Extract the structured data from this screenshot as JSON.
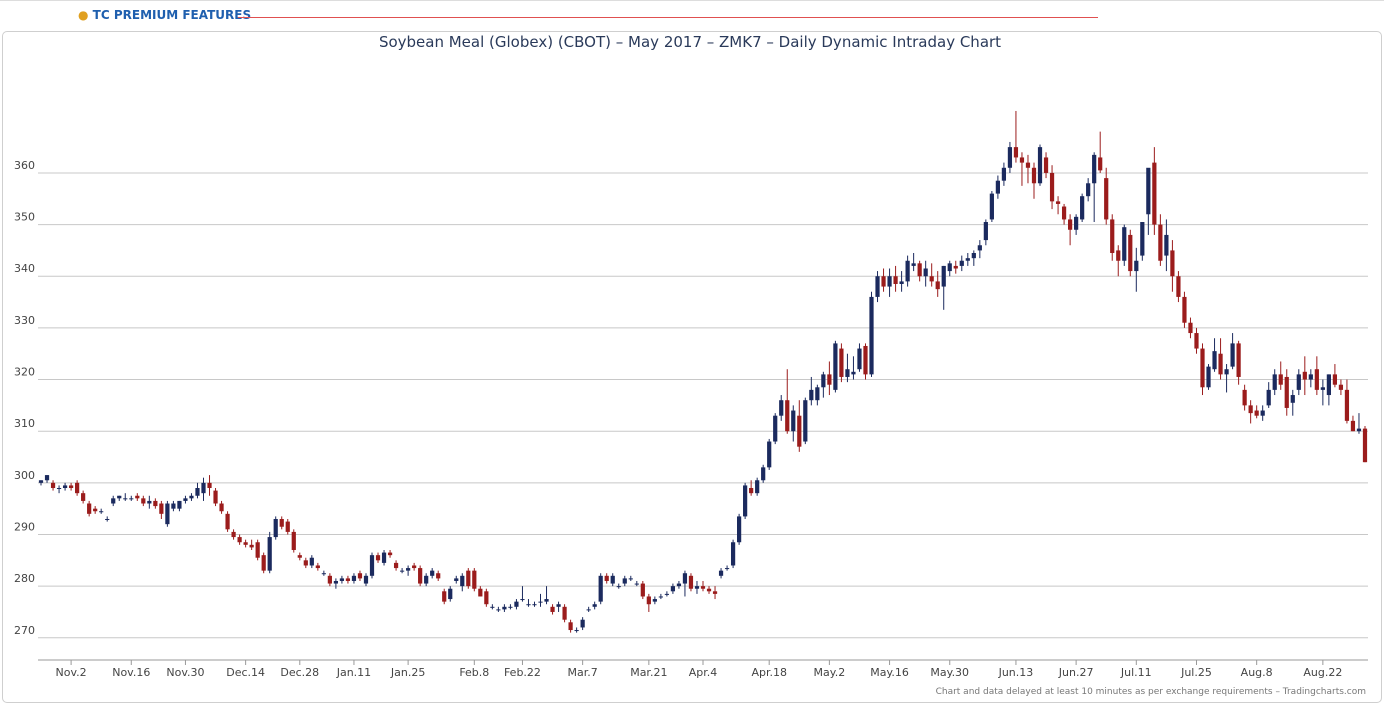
{
  "header": {
    "title": "TC PREMIUM FEATURES"
  },
  "footer": "Chart and data delayed at least 10 minutes as per exchange requirements – Tradingcharts.com",
  "chart_data": {
    "type": "candlestick",
    "title": "Soybean Meal (Globex) (CBOT) – May 2017 – ZMK7 – Daily Dynamic Intraday Chart",
    "xlim": [
      -0.5,
      220.5
    ],
    "xticks": [
      {
        "value": 5,
        "label": "Nov.2"
      },
      {
        "value": 15,
        "label": "Nov.16"
      },
      {
        "value": 24,
        "label": "Nov.30"
      },
      {
        "value": 34,
        "label": "Dec.14"
      },
      {
        "value": 43,
        "label": "Dec.28"
      },
      {
        "value": 52,
        "label": "Jan.11"
      },
      {
        "value": 61,
        "label": "Jan.25"
      },
      {
        "value": 72,
        "label": "Feb.8"
      },
      {
        "value": 80,
        "label": "Feb.22"
      },
      {
        "value": 90,
        "label": "Mar.7"
      },
      {
        "value": 101,
        "label": "Mar.21"
      },
      {
        "value": 110,
        "label": "Apr.4"
      },
      {
        "value": 121,
        "label": "Apr.18"
      },
      {
        "value": 131,
        "label": "May.2"
      },
      {
        "value": 141,
        "label": "May.16"
      },
      {
        "value": 151,
        "label": "May.30"
      },
      {
        "value": 162,
        "label": "Jun.13"
      },
      {
        "value": 172,
        "label": "Jun.27"
      },
      {
        "value": 182,
        "label": "Jul.11"
      },
      {
        "value": 192,
        "label": "Jul.25"
      },
      {
        "value": 202,
        "label": "Aug.8"
      },
      {
        "value": 213,
        "label": "Aug.22"
      }
    ],
    "ylim": [
      265.7,
      380.9
    ],
    "yticks": [
      270,
      280,
      290,
      300,
      310,
      320,
      330,
      340,
      350,
      360
    ],
    "grid": true,
    "up_color": "#1b2a5e",
    "down_color": "#9b1c1c",
    "candles": [
      [
        300,
        300.5,
        299.5,
        300.5
      ],
      [
        300.5,
        301.5,
        300,
        301.5
      ],
      [
        300,
        300.5,
        298.5,
        299
      ],
      [
        299,
        299.5,
        298,
        299
      ],
      [
        299,
        300,
        298.5,
        299.5
      ],
      [
        299.5,
        300,
        298.5,
        299
      ],
      [
        300,
        300.5,
        297.5,
        298
      ],
      [
        298,
        298.5,
        296,
        296.5
      ],
      [
        296,
        296.5,
        293.5,
        294
      ],
      [
        295,
        295.5,
        294,
        294.5
      ],
      [
        294.5,
        295,
        294,
        294.5
      ],
      [
        293,
        293.5,
        292.5,
        293
      ],
      [
        296,
        297.5,
        295.5,
        297
      ],
      [
        297,
        297.5,
        296.5,
        297.5
      ],
      [
        297,
        298,
        296.5,
        297
      ],
      [
        297,
        297.5,
        296.5,
        297
      ],
      [
        297.5,
        298,
        296.5,
        297
      ],
      [
        297,
        297.5,
        295.5,
        296
      ],
      [
        296,
        297.5,
        295,
        296.5
      ],
      [
        296.5,
        297,
        295,
        295.5
      ],
      [
        296,
        296.5,
        293,
        294
      ],
      [
        292,
        296.5,
        291.5,
        296
      ],
      [
        295,
        296.5,
        294.5,
        296
      ],
      [
        295,
        296.5,
        294.5,
        296.5
      ],
      [
        296.5,
        297.5,
        296,
        297
      ],
      [
        297,
        298,
        296.5,
        297.5
      ],
      [
        297.5,
        300,
        297,
        299
      ],
      [
        298,
        301,
        296.5,
        300
      ],
      [
        300,
        301.5,
        297.5,
        299
      ],
      [
        298.5,
        299,
        295.5,
        296
      ],
      [
        296,
        296.5,
        294,
        294.5
      ],
      [
        294,
        294.5,
        290.5,
        291
      ],
      [
        290.5,
        291,
        289,
        289.5
      ],
      [
        289.5,
        290,
        288,
        288.5
      ],
      [
        288.5,
        289,
        287.5,
        288
      ],
      [
        288,
        289,
        287,
        287.5
      ],
      [
        288.5,
        289,
        285,
        285.5
      ],
      [
        286,
        286.5,
        282.5,
        283
      ],
      [
        283,
        290.5,
        282.5,
        289.5
      ],
      [
        289.5,
        293.5,
        289,
        293
      ],
      [
        293,
        293.5,
        291,
        291.5
      ],
      [
        292.5,
        293,
        290,
        290.5
      ],
      [
        290.5,
        291,
        286.5,
        287
      ],
      [
        286,
        286.5,
        285,
        285.5
      ],
      [
        285,
        285.5,
        283.5,
        284
      ],
      [
        284,
        286,
        283.5,
        285.5
      ],
      [
        284,
        284.5,
        283,
        283.5
      ],
      [
        282.5,
        283,
        282,
        282.5
      ],
      [
        282,
        282.5,
        280,
        280.5
      ],
      [
        280.5,
        281.5,
        279.5,
        281
      ],
      [
        281,
        282,
        280.5,
        281.5
      ],
      [
        281.5,
        282,
        280.5,
        281
      ],
      [
        281,
        282.5,
        280.5,
        282
      ],
      [
        282.5,
        283,
        281,
        281.5
      ],
      [
        280.5,
        282.5,
        280,
        282
      ],
      [
        282,
        286.5,
        281.5,
        286
      ],
      [
        286,
        286.5,
        284.5,
        285
      ],
      [
        284.5,
        287,
        284,
        286.5
      ],
      [
        286.5,
        287,
        285.5,
        286
      ],
      [
        284.5,
        285,
        283,
        283.5
      ],
      [
        283,
        283.5,
        282.5,
        283
      ],
      [
        283,
        284,
        282,
        283.5
      ],
      [
        284,
        284.5,
        283,
        283.5
      ],
      [
        283.5,
        284,
        280,
        280.5
      ],
      [
        280.5,
        282.5,
        280,
        282
      ],
      [
        282,
        283.5,
        281.5,
        283
      ],
      [
        282.5,
        283,
        281,
        281.5
      ],
      [
        279,
        279.5,
        276.5,
        277
      ],
      [
        277.5,
        280,
        277,
        279.5
      ],
      [
        281,
        282,
        280.5,
        281.5
      ],
      [
        280,
        282.5,
        279,
        282
      ],
      [
        283,
        283.5,
        279.5,
        280
      ],
      [
        283,
        283.5,
        279,
        279.5
      ],
      [
        279.5,
        280,
        278,
        278
      ],
      [
        279,
        279.5,
        276,
        276.5
      ],
      [
        276,
        276.5,
        275.5,
        276
      ],
      [
        275.5,
        276,
        275,
        275.5
      ],
      [
        275.5,
        276.5,
        275,
        276
      ],
      [
        276,
        276.5,
        275.5,
        276
      ],
      [
        276,
        277.5,
        275.5,
        277
      ],
      [
        277.5,
        280,
        277,
        277.5
      ],
      [
        276.5,
        277.5,
        276,
        276.5
      ],
      [
        276.5,
        277,
        276,
        276.5
      ],
      [
        277,
        278.5,
        276,
        277
      ],
      [
        277,
        280,
        276.5,
        277.5
      ],
      [
        276,
        276.5,
        274.5,
        275
      ],
      [
        276,
        277,
        275,
        276.5
      ],
      [
        276,
        276.5,
        273,
        273.5
      ],
      [
        273,
        273.5,
        271,
        271.5
      ],
      [
        271.5,
        272,
        271,
        271.5
      ],
      [
        272,
        274,
        271.5,
        273.5
      ],
      [
        275.5,
        276,
        275,
        275.5
      ],
      [
        276,
        277,
        275.5,
        276.5
      ],
      [
        277,
        282.5,
        276.5,
        282
      ],
      [
        282,
        282.5,
        280.5,
        281
      ],
      [
        280.5,
        282.5,
        280,
        282
      ],
      [
        280,
        280.5,
        279.5,
        280
      ],
      [
        280.5,
        282,
        280,
        281.5
      ],
      [
        281.5,
        282,
        281,
        281.5
      ],
      [
        280.5,
        281,
        280,
        280.5
      ],
      [
        280.5,
        281,
        277.5,
        278
      ],
      [
        278,
        278.5,
        275,
        276.5
      ],
      [
        277,
        278,
        276.5,
        277.5
      ],
      [
        278,
        278.5,
        277.5,
        278
      ],
      [
        278.5,
        279,
        278,
        278.5
      ],
      [
        279,
        280.5,
        278.5,
        280
      ],
      [
        280,
        281,
        279.5,
        280.5
      ],
      [
        280.5,
        283,
        278,
        282.5
      ],
      [
        282,
        282.5,
        279,
        279.5
      ],
      [
        279.5,
        281,
        278.5,
        280
      ],
      [
        280,
        281,
        279,
        279.5
      ],
      [
        279.5,
        280,
        278.5,
        279
      ],
      [
        279,
        280,
        277.5,
        278.5
      ],
      [
        282,
        283.5,
        281.5,
        283
      ],
      [
        283.5,
        284,
        283,
        283.5
      ],
      [
        284,
        289,
        283.5,
        288.5
      ],
      [
        288.5,
        294,
        288,
        293.5
      ],
      [
        293.5,
        300,
        293,
        299.5
      ],
      [
        299,
        300.5,
        297.5,
        298
      ],
      [
        298,
        301,
        297.5,
        300.5
      ],
      [
        300.5,
        303.5,
        300,
        303
      ],
      [
        303,
        308.5,
        302.5,
        308
      ],
      [
        308,
        313.5,
        307.5,
        313
      ],
      [
        313,
        317,
        312,
        316
      ],
      [
        316,
        322,
        309.5,
        310
      ],
      [
        310,
        315,
        308,
        314
      ],
      [
        313,
        316,
        306,
        307
      ],
      [
        308,
        316.5,
        307.5,
        316
      ],
      [
        316,
        320.5,
        315,
        318
      ],
      [
        316,
        319,
        315,
        318.5
      ],
      [
        318.5,
        321.5,
        316.5,
        321
      ],
      [
        321,
        323.5,
        317,
        319
      ],
      [
        318,
        327.5,
        317.5,
        327
      ],
      [
        326,
        327,
        319.5,
        320.5
      ],
      [
        320.5,
        325,
        319.5,
        322
      ],
      [
        321,
        324.5,
        320,
        321.5
      ],
      [
        322,
        327,
        321.5,
        326
      ],
      [
        326.5,
        327,
        320,
        321
      ],
      [
        321,
        337,
        320.5,
        336
      ],
      [
        336,
        341,
        335,
        340
      ],
      [
        340,
        341.5,
        337,
        338
      ],
      [
        338,
        341.5,
        336,
        340
      ],
      [
        340,
        342,
        337,
        338.5
      ],
      [
        338.5,
        341,
        337,
        339
      ],
      [
        339,
        344,
        338,
        343
      ],
      [
        342,
        344.5,
        341,
        342.5
      ],
      [
        342.5,
        343,
        339,
        340
      ],
      [
        340,
        343,
        338,
        341.5
      ],
      [
        340,
        342.5,
        338,
        339
      ],
      [
        339,
        341,
        336,
        337.5
      ],
      [
        338,
        342,
        333.5,
        342
      ],
      [
        341,
        343,
        340,
        342.5
      ],
      [
        342,
        343,
        340.5,
        341.5
      ],
      [
        342,
        344,
        341,
        343
      ],
      [
        343,
        344.5,
        342,
        343.5
      ],
      [
        343.5,
        345,
        342,
        344.5
      ],
      [
        345,
        347,
        343.5,
        346
      ],
      [
        347,
        351,
        346,
        350.5
      ],
      [
        351,
        356.5,
        350.5,
        356
      ],
      [
        356,
        359.5,
        355,
        358.5
      ],
      [
        358.5,
        362,
        357.5,
        361
      ],
      [
        361,
        366,
        360,
        365
      ],
      [
        365,
        372,
        362,
        363
      ],
      [
        363,
        364,
        357.5,
        362
      ],
      [
        362,
        363.5,
        358,
        361
      ],
      [
        361,
        362,
        355,
        358
      ],
      [
        358,
        365.5,
        357.5,
        365
      ],
      [
        363,
        364,
        359,
        360
      ],
      [
        360,
        361.5,
        353,
        354.5
      ],
      [
        354.5,
        355.5,
        352,
        354
      ],
      [
        353.5,
        354,
        350,
        351
      ],
      [
        351,
        352,
        346,
        349
      ],
      [
        349,
        352,
        348,
        351.5
      ],
      [
        351,
        356,
        350.5,
        355.5
      ],
      [
        355.5,
        359,
        354.5,
        358
      ],
      [
        358,
        364,
        350.5,
        363.5
      ],
      [
        363,
        368,
        360,
        360.5
      ],
      [
        359,
        361,
        350,
        351
      ],
      [
        351,
        352,
        343,
        344.5
      ],
      [
        345,
        346,
        340,
        343
      ],
      [
        343,
        350,
        342,
        349.5
      ],
      [
        348,
        349,
        340,
        341
      ],
      [
        341,
        345.5,
        337,
        343
      ],
      [
        344,
        350,
        343,
        350.5
      ],
      [
        352,
        360,
        348,
        361
      ],
      [
        362,
        365,
        348,
        350
      ],
      [
        350,
        352,
        342,
        343
      ],
      [
        344,
        351,
        341,
        348
      ],
      [
        345,
        347,
        337,
        340
      ],
      [
        340,
        341,
        335,
        336
      ],
      [
        336,
        337,
        330,
        331
      ],
      [
        331,
        332,
        328,
        329
      ],
      [
        329,
        330,
        325,
        326
      ],
      [
        326,
        327,
        317,
        318.5
      ],
      [
        318.5,
        323,
        318,
        322.5
      ],
      [
        322,
        328,
        321.5,
        325.5
      ],
      [
        325,
        328,
        320,
        321
      ],
      [
        321,
        323,
        317.5,
        322
      ],
      [
        322.5,
        329,
        322,
        327
      ],
      [
        327,
        327.5,
        319,
        320.5
      ],
      [
        318,
        319,
        314,
        315
      ],
      [
        315,
        316,
        311.5,
        313.5
      ],
      [
        314,
        315,
        312.5,
        313
      ],
      [
        313,
        315,
        312,
        314
      ],
      [
        315,
        319.5,
        314.5,
        318
      ],
      [
        318,
        322,
        317,
        321
      ],
      [
        321,
        323.5,
        318,
        319
      ],
      [
        320.5,
        322,
        313,
        314.5
      ],
      [
        315.5,
        318,
        313,
        317
      ],
      [
        318,
        322,
        317,
        321
      ],
      [
        321.5,
        324.5,
        317,
        320
      ],
      [
        320,
        322,
        318.5,
        321
      ],
      [
        322,
        324.5,
        317,
        318
      ],
      [
        318,
        320,
        315,
        318.5
      ],
      [
        317,
        321,
        315,
        321
      ],
      [
        321,
        323,
        318.5,
        319
      ],
      [
        319,
        320,
        317,
        318
      ],
      [
        318,
        320,
        311.5,
        312
      ],
      [
        312,
        313,
        310,
        310
      ],
      [
        310,
        313.5,
        309.5,
        310.5
      ],
      [
        310.5,
        311,
        304,
        304
      ]
    ]
  }
}
